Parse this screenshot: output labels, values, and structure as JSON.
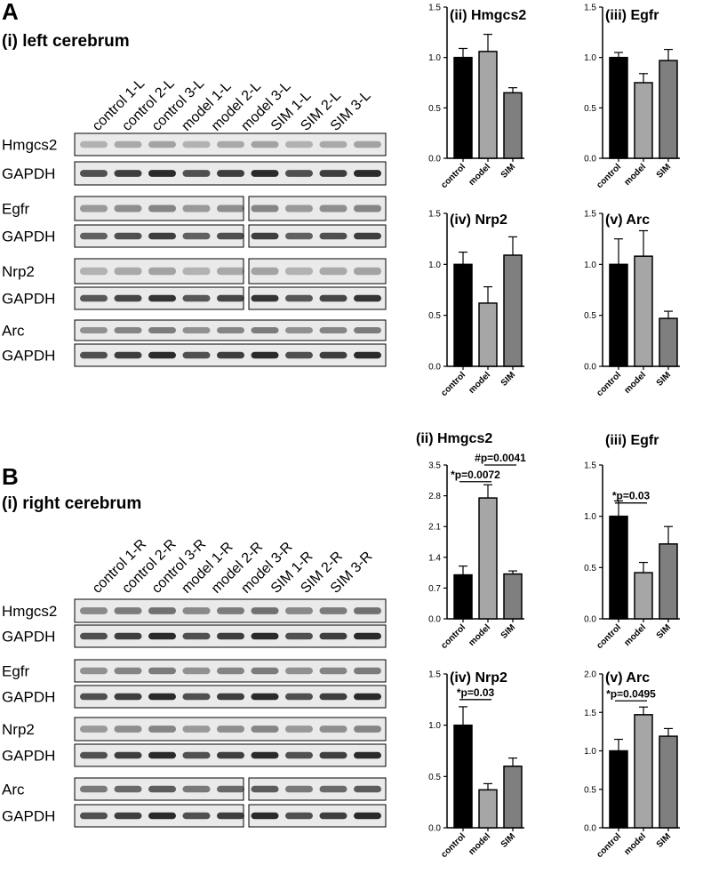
{
  "panels": [
    {
      "letter": "A",
      "subtitle": "(i) left cerebrum",
      "lanes": [
        "control 1-L",
        "control 2-L",
        "control 3-L",
        "model 1-L",
        "model 2-L",
        "model 3-L",
        "SIM 1-L",
        "SIM 2-L",
        "SIM 3-L"
      ],
      "blots": [
        {
          "label": "Hmgcs2",
          "loading": "GAPDH"
        },
        {
          "label": "Egfr",
          "loading": "GAPDH"
        },
        {
          "label": "Nrp2",
          "loading": "GAPDH"
        },
        {
          "label": "Arc",
          "loading": "GAPDH"
        }
      ]
    },
    {
      "letter": "B",
      "subtitle": "(i) right cerebrum",
      "lanes": [
        "control 1-R",
        "control 2-R",
        "control 3-R",
        "model 1-R",
        "model 2-R",
        "model 3-R",
        "SIM 1-R",
        "SIM 2-R",
        "SIM 3-R"
      ],
      "blots": [
        {
          "label": "Hmgcs2",
          "loading": "GAPDH"
        },
        {
          "label": "Egfr",
          "loading": "GAPDH"
        },
        {
          "label": "Nrp2",
          "loading": "GAPDH"
        },
        {
          "label": "Arc",
          "loading": "GAPDH"
        }
      ]
    }
  ],
  "chart_data": [
    {
      "type": "bar",
      "title": "(ii) Hmgcs2",
      "categories": [
        "control",
        "model",
        "SIM"
      ],
      "values": [
        1.0,
        1.06,
        0.65
      ],
      "errors": [
        0.09,
        0.17,
        0.05
      ],
      "ylim": [
        0,
        1.5
      ],
      "yticks": [
        "0.0",
        "0.5",
        "1.0",
        "1.5"
      ],
      "annotations": []
    },
    {
      "type": "bar",
      "title": "(iii) Egfr",
      "categories": [
        "control",
        "model",
        "SIM"
      ],
      "values": [
        1.0,
        0.75,
        0.97
      ],
      "errors": [
        0.05,
        0.09,
        0.11
      ],
      "ylim": [
        0,
        1.5
      ],
      "yticks": [
        "0.0",
        "0.5",
        "1.0",
        "1.5"
      ],
      "annotations": []
    },
    {
      "type": "bar",
      "title": "(iv) Nrp2",
      "categories": [
        "control",
        "model",
        "SIM"
      ],
      "values": [
        1.0,
        0.62,
        1.09
      ],
      "errors": [
        0.12,
        0.16,
        0.18
      ],
      "ylim": [
        0,
        1.5
      ],
      "yticks": [
        "0.0",
        "0.5",
        "1.0",
        "1.5"
      ],
      "annotations": []
    },
    {
      "type": "bar",
      "title": "(v) Arc",
      "categories": [
        "control",
        "model",
        "SIM"
      ],
      "values": [
        1.0,
        1.08,
        0.47
      ],
      "errors": [
        0.25,
        0.25,
        0.07
      ],
      "ylim": [
        0,
        1.5
      ],
      "yticks": [
        "0.0",
        "0.5",
        "1.0",
        "1.5"
      ],
      "annotations": []
    },
    {
      "type": "bar",
      "title": "(ii) Hmgcs2",
      "categories": [
        "control",
        "model",
        "SIM"
      ],
      "values": [
        1.0,
        2.75,
        1.02
      ],
      "errors": [
        0.2,
        0.3,
        0.07
      ],
      "ylim": [
        0,
        3.5
      ],
      "yticks": [
        "0.0",
        "0.7",
        "1.4",
        "2.1",
        "2.8",
        "3.5"
      ],
      "annotations": [
        {
          "text": "*p=0.0072",
          "from": 0,
          "to": 1,
          "y": 3.12
        },
        {
          "text": "#p=0.0041",
          "from": 1,
          "to": 2,
          "y": 3.5
        }
      ]
    },
    {
      "type": "bar",
      "title": "(iii) Egfr",
      "categories": [
        "control",
        "model",
        "SIM"
      ],
      "values": [
        1.0,
        0.45,
        0.73
      ],
      "errors": [
        0.15,
        0.1,
        0.17
      ],
      "ylim": [
        0,
        1.5
      ],
      "yticks": [
        "0.0",
        "0.5",
        "1.0",
        "1.5"
      ],
      "annotations": [
        {
          "text": "*p=0.03",
          "from": 0,
          "to": 1,
          "y": 1.13
        }
      ]
    },
    {
      "type": "bar",
      "title": "(iv) Nrp2",
      "categories": [
        "control",
        "model",
        "SIM"
      ],
      "values": [
        1.0,
        0.37,
        0.6
      ],
      "errors": [
        0.18,
        0.06,
        0.08
      ],
      "ylim": [
        0,
        1.5
      ],
      "yticks": [
        "0.0",
        "0.5",
        "1.0",
        "1.5"
      ],
      "annotations": [
        {
          "text": "*p=0.03",
          "from": 0,
          "to": 1,
          "y": 1.25
        }
      ]
    },
    {
      "type": "bar",
      "title": "(v) Arc",
      "categories": [
        "control",
        "model",
        "SIM"
      ],
      "values": [
        1.0,
        1.47,
        1.19
      ],
      "errors": [
        0.15,
        0.1,
        0.1
      ],
      "ylim": [
        0,
        2.0
      ],
      "yticks": [
        "0.0",
        "0.5",
        "1.0",
        "1.5",
        "2.0"
      ],
      "annotations": [
        {
          "text": "*p=0.0495",
          "from": 0,
          "to": 1,
          "y": 1.65
        }
      ]
    }
  ]
}
